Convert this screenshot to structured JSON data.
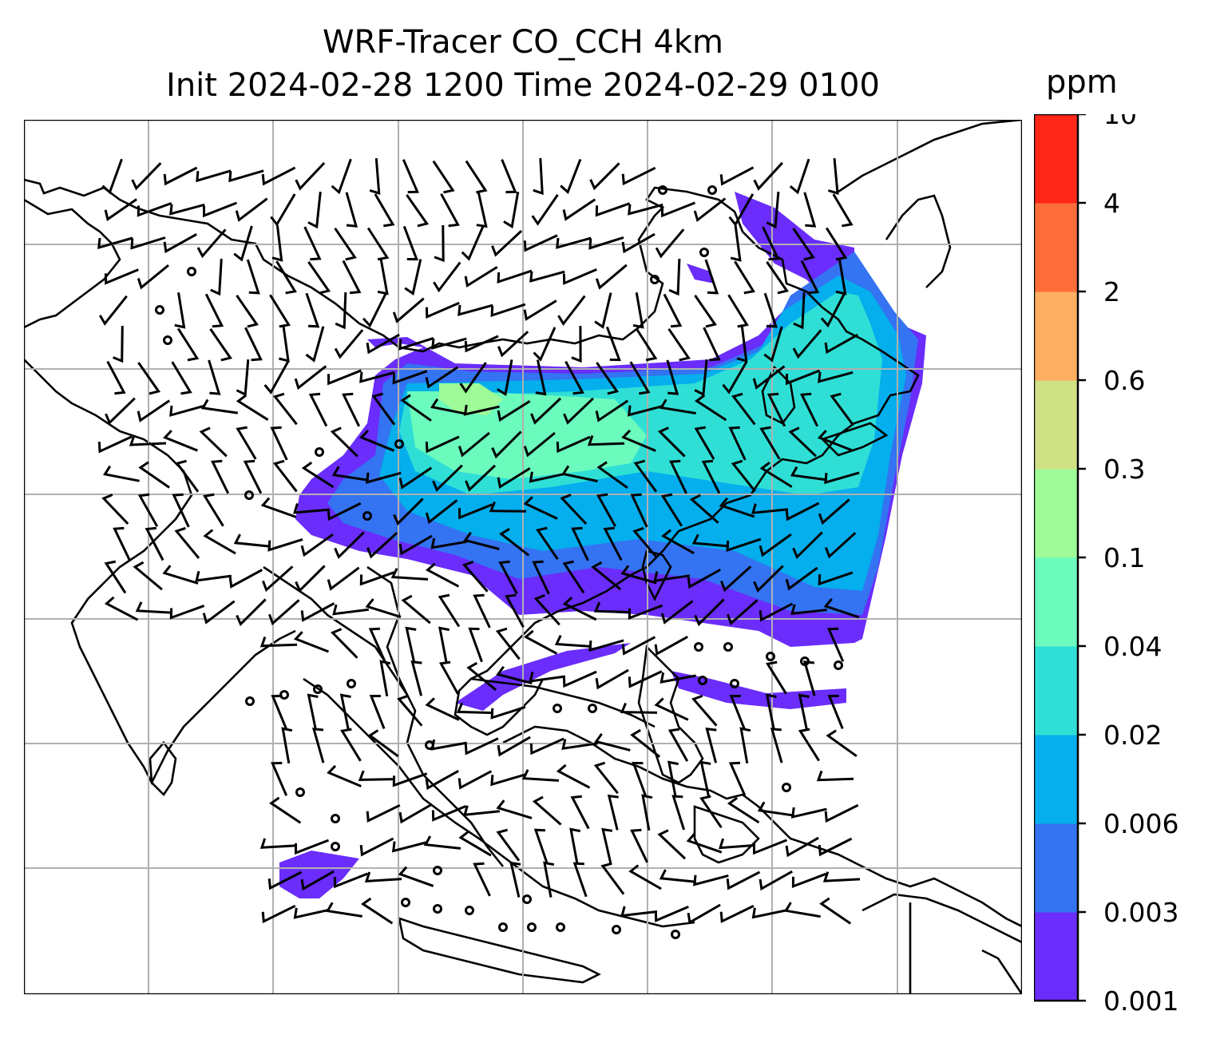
{
  "title": {
    "line1": "WRF-Tracer CO_CCH 4km",
    "line2": "Init 2024-02-28 1200 Time 2024-02-29 0100"
  },
  "colorbar": {
    "unit": "ppm",
    "levels": [
      "0.001",
      "0.003",
      "0.006",
      "0.02",
      "0.04",
      "0.1",
      "0.3",
      "0.6",
      "2",
      "4",
      "10"
    ],
    "colors": [
      "#6a2dfb",
      "#3473f2",
      "#05aeec",
      "#2fdfd6",
      "#6bfbbd",
      "#9efb98",
      "#d0e085",
      "#fdae61",
      "#ff6e3a",
      "#ff2718"
    ]
  },
  "map": {
    "grid": true,
    "overlays": [
      "coastline",
      "wind-barbs",
      "calm-wind-circles"
    ]
  }
}
